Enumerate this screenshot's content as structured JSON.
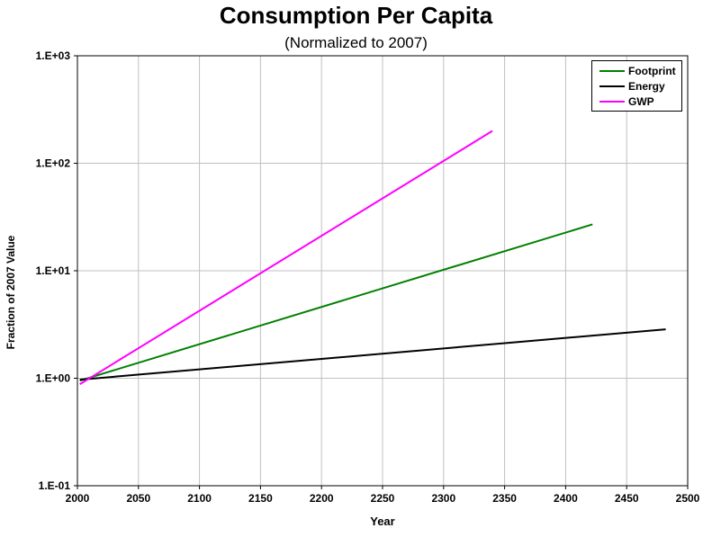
{
  "chart_data": {
    "type": "line",
    "title": "Consumption Per Capita",
    "subtitle": "(Normalized to 2007)",
    "xlabel": "Year",
    "ylabel": "Fraction of 2007 Value",
    "xlim": [
      2000,
      2500
    ],
    "ylim": [
      0.1,
      1000
    ],
    "yscale": "log",
    "x_ticks": [
      "2000",
      "2050",
      "2100",
      "2150",
      "2200",
      "2250",
      "2300",
      "2350",
      "2400",
      "2450",
      "2500"
    ],
    "y_ticks": [
      "1.E-01",
      "1.E+00",
      "1.E+01",
      "1.E+02",
      "1.E+03"
    ],
    "grid": true,
    "legend_position": "top-right",
    "series": [
      {
        "name": "Footprint",
        "color": "#008000",
        "x": [
          2002,
          2422
        ],
        "y": [
          0.95,
          27
        ]
      },
      {
        "name": "Energy",
        "color": "#000000",
        "x": [
          2002,
          2482
        ],
        "y": [
          0.97,
          2.85
        ]
      },
      {
        "name": "GWP",
        "color": "#ff00ff",
        "x": [
          2002,
          2340
        ],
        "y": [
          0.88,
          200
        ]
      }
    ]
  }
}
